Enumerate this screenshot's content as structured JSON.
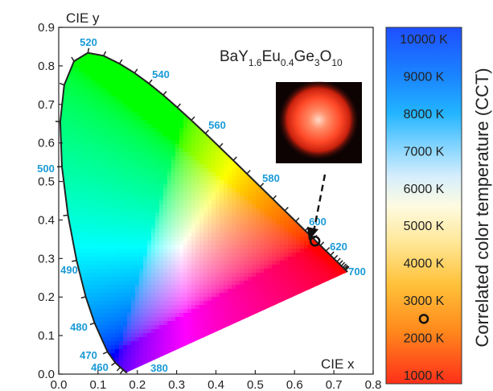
{
  "chart_data": [
    {
      "type": "scatter",
      "title": "BaY1.6Eu0.4Ge3O10",
      "title_parts": [
        {
          "text": "BaY",
          "sub": false
        },
        {
          "text": "1.6",
          "sub": true
        },
        {
          "text": "Eu",
          "sub": false
        },
        {
          "text": "0.4",
          "sub": true
        },
        {
          "text": "Ge",
          "sub": false
        },
        {
          "text": "3",
          "sub": true
        },
        {
          "text": "O",
          "sub": false
        },
        {
          "text": "10",
          "sub": true
        }
      ],
      "xlabel": "CIE x",
      "ylabel": "CIE y",
      "xlim": [
        0.0,
        0.8
      ],
      "ylim": [
        0.0,
        0.9
      ],
      "x_ticks": [
        "0.0",
        "0.1",
        "0.2",
        "0.3",
        "0.4",
        "0.5",
        "0.6",
        "0.7",
        "0.8"
      ],
      "y_ticks": [
        "0.0",
        "0.1",
        "0.2",
        "0.3",
        "0.4",
        "0.5",
        "0.6",
        "0.7",
        "0.8",
        "0.9"
      ],
      "grid": false,
      "wavelength_labels": [
        "520",
        "540",
        "560",
        "580",
        "600",
        "620",
        "700",
        "500",
        "490",
        "480",
        "470",
        "460",
        "380"
      ],
      "point": {
        "x": 0.652,
        "y": 0.345
      },
      "inset": "photo of red emission spot",
      "label_color": "#1a9ad6"
    },
    {
      "type": "heatmap",
      "ylabel": "Correlated color temperature (CCT)",
      "levels": [
        "10000 K",
        "9000 K",
        "8000 K",
        "7000 K",
        "6000 K",
        "5000 K",
        "4000 K",
        "3000 K",
        "2000 K",
        "1000 K"
      ],
      "point_cct": 2500
    }
  ]
}
